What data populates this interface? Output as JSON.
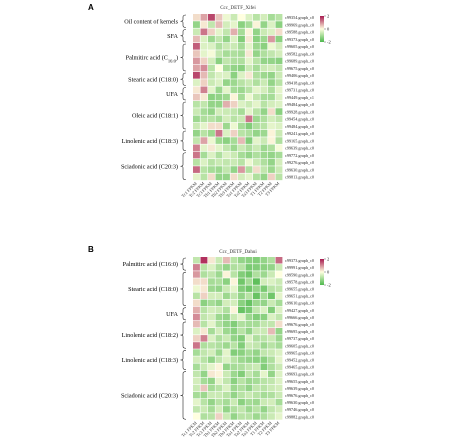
{
  "palette": {
    "low": "#4db84d",
    "mid": "#ffffe0",
    "high": "#a8194f"
  },
  "chart_data": [
    {
      "type": "heatmap",
      "panel_letter": "A",
      "title": "Ccc_DETF_Xifei",
      "columns": [
        "Tc1 FPKM",
        "Tc2 FPKM",
        "Tc3 FPKM",
        "Tb1 FPKM",
        "Tb2 FPKM",
        "Tb3 FPKM",
        "Ta1 FPKM",
        "Ta2 FPKM",
        "Ta3 FPKM",
        "T1 FPKM",
        "T2 FPKM",
        "T3 FPKM"
      ],
      "rows": [
        "c99354.graph_c0",
        "c99969.graph_c0",
        "c99588.graph_c0",
        "c99373.graph_c0",
        "c99605.graph_c0",
        "c99582.graph_c0",
        "c99689.graph_c0",
        "c99675.graph_c0",
        "c99406.graph_c0",
        "c99418.graph_c0",
        "c99731.graph_c0",
        "c99449.graph_c1",
        "c99484.graph_c0",
        "c99928.graph_c0",
        "c99454.graph_c0",
        "c99484.graph_c0",
        "c99241.graph_c0",
        "c99165.graph_c0",
        "c99639.graph_c0",
        "c99772.graph_c0",
        "c99276.graph_c0",
        "c99630.graph_c0",
        "c99813.graph_c0"
      ],
      "values": [
        [
          0.3,
          0.8,
          1.6,
          0.5,
          -0.2,
          -0.6,
          0.0,
          -0.4,
          -0.8,
          -0.5,
          -1.0,
          -0.8
        ],
        [
          -1.2,
          0.2,
          -0.7,
          0.6,
          -0.5,
          -0.3,
          -1.3,
          -1.0,
          0.1,
          -1.2,
          -0.4,
          -1.3
        ],
        [
          -0.6,
          1.2,
          0.4,
          -0.3,
          -0.7,
          0.7,
          -1.0,
          0.1,
          -1.2,
          -0.6,
          -0.4,
          0.3
        ],
        [
          0.6,
          -0.4,
          -1.1,
          -0.7,
          -1.2,
          -0.4,
          -1.4,
          0.2,
          -1.3,
          -1.1,
          0.9,
          -1.3
        ],
        [
          1.4,
          -0.4,
          -0.4,
          -0.9,
          -0.6,
          -0.6,
          -1.0,
          -0.3,
          -1.1,
          -1.3,
          -0.2,
          -0.5
        ],
        [
          0.5,
          -0.3,
          -0.1,
          -0.7,
          -1.0,
          -0.9,
          -1.0,
          0.2,
          -1.2,
          -0.9,
          -0.7,
          -0.5
        ],
        [
          0.9,
          0.4,
          -0.5,
          -1.3,
          -0.7,
          -0.9,
          -0.9,
          -0.3,
          -0.8,
          -1.2,
          -1.2,
          -1.3
        ],
        [
          0.8,
          1.0,
          -0.8,
          0.0,
          -1.0,
          -1.2,
          -1.3,
          -0.6,
          -1.0,
          -0.6,
          -0.5,
          -0.7
        ],
        [
          1.6,
          0.6,
          -0.7,
          -0.4,
          -0.4,
          -1.3,
          -0.4,
          0.2,
          -0.9,
          -1.1,
          -1.2,
          -0.6
        ],
        [
          -0.4,
          0.4,
          -0.6,
          -0.4,
          -1.2,
          -1.1,
          -0.8,
          -0.6,
          -0.9,
          -0.6,
          -1.2,
          -0.8
        ],
        [
          0.2,
          1.1,
          -0.3,
          -1.1,
          -0.3,
          -1.0,
          -1.1,
          -0.8,
          -0.3,
          -0.5,
          -0.9,
          -0.3
        ],
        [
          0.5,
          0.2,
          -1.3,
          -1.2,
          -1.1,
          0.1,
          -1.0,
          -0.2,
          -0.7,
          -1.0,
          -1.0,
          -0.4
        ],
        [
          -0.8,
          -0.7,
          -1.2,
          -1.2,
          0.7,
          0.4,
          -0.4,
          -0.6,
          -0.3,
          -0.8,
          -0.5,
          -0.4
        ],
        [
          -0.6,
          -1.0,
          -1.2,
          -0.5,
          -0.6,
          -0.7,
          -1.0,
          -0.3,
          -0.8,
          -1.2,
          0.3,
          -1.3
        ],
        [
          -1.1,
          -0.9,
          -0.8,
          -1.0,
          -0.5,
          -0.8,
          -0.6,
          1.2,
          -1.1,
          -0.9,
          -0.5,
          -0.7
        ],
        [
          -0.6,
          -0.3,
          0.3,
          0.3,
          -1.1,
          -0.2,
          -1.0,
          -1.4,
          -0.9,
          -0.8,
          -0.3,
          -0.4
        ],
        [
          -1.2,
          -0.8,
          -1.1,
          1.2,
          -0.4,
          0.4,
          -0.8,
          -0.9,
          -1.2,
          -1.1,
          0.1,
          -0.6
        ],
        [
          -0.7,
          0.8,
          -0.2,
          -1.1,
          -1.3,
          -1.0,
          0.6,
          -1.4,
          -0.3,
          -0.6,
          0.1,
          -0.9
        ],
        [
          1.1,
          -0.3,
          0.2,
          -0.3,
          -0.7,
          -1.1,
          -0.6,
          -0.9,
          -0.6,
          -1.1,
          -0.9,
          -0.1
        ],
        [
          1.2,
          -1.0,
          -0.4,
          -0.9,
          -0.4,
          -0.6,
          -1.0,
          -1.2,
          -0.9,
          -1.1,
          -1.2,
          -1.0
        ],
        [
          -0.8,
          -0.4,
          -0.8,
          -0.6,
          -0.7,
          -0.6,
          -0.8,
          -0.2,
          -0.6,
          -0.9,
          -1.2,
          -0.5
        ],
        [
          1.3,
          -0.8,
          -1.0,
          -1.1,
          -0.7,
          -1.2,
          0.9,
          -0.9,
          0.3,
          -0.7,
          -1.1,
          -0.6
        ],
        [
          -0.3,
          -0.8,
          0.3,
          -1.2,
          -1.2,
          0.3,
          -0.5,
          -0.3,
          -0.9,
          -1.2,
          0.4,
          -0.8
        ]
      ],
      "colorscale_range": [
        -2,
        2
      ],
      "legend_ticks": [
        "2",
        "0",
        "-2"
      ],
      "groups": [
        {
          "label": "Oil content of kernels",
          "rows": [
            0,
            2
          ]
        },
        {
          "label": "SFA",
          "rows": [
            2,
            4
          ]
        },
        {
          "label": "Palmitirc acid (C16:0)",
          "label_main": "Palmitirc acid (C",
          "label_sub": "16:0",
          "label_end": ")",
          "rows": [
            4,
            8
          ]
        },
        {
          "label": "Stearic acid (C18:0)",
          "rows": [
            8,
            10
          ]
        },
        {
          "label": "UFA",
          "rows": [
            10,
            12
          ]
        },
        {
          "label": "Oleic acid (C18:1)",
          "rows": [
            12,
            16
          ]
        },
        {
          "label": "Linolenic acid (C18:3)",
          "rows": [
            16,
            19
          ]
        },
        {
          "label": "Sciadonic acid (C20:3)",
          "rows": [
            19,
            23
          ]
        }
      ]
    },
    {
      "type": "heatmap",
      "panel_letter": "B",
      "title": "Ccc_DETF_Dahui",
      "columns": [
        "Tc1 FPKM",
        "Tc2 FPKM",
        "Tc3 FPKM",
        "Tb1 FPKM",
        "Tb2 FPKM",
        "Tb3 FPKM",
        "Ta1 FPKM",
        "Ta2 FPKM",
        "Ta3 FPKM",
        "T1 FPKM",
        "T2 FPKM",
        "T3 FPKM"
      ],
      "rows": [
        "c99373.graph_c0",
        "c99991.graph_c0",
        "c99590.graph_c0",
        "c99578.graph_c0",
        "c99655.graph_c0",
        "c99651.graph_c0",
        "c99610.graph_c0",
        "c99427.graph_c0",
        "c99666.graph_c0",
        "c99676.graph_c0",
        "c99695.graph_c0",
        "c99737.graph_c0",
        "c99605.graph_c0",
        "c99965.graph_c0",
        "c99452.graph_c0",
        "c99465.graph_c0",
        "c99693.graph_c0",
        "c99655.graph_c0",
        "c99639.graph_c0",
        "c99676.graph_c0",
        "c99630.graph_c0",
        "c99746.graph_c0",
        "c99882.graph_c0"
      ],
      "values": [
        [
          -0.7,
          1.8,
          0.2,
          -0.6,
          0.6,
          -0.8,
          -1.2,
          -1.3,
          -1.4,
          -1.2,
          -0.9,
          1.3
        ],
        [
          1.1,
          -0.8,
          -0.4,
          -0.9,
          -1.2,
          -0.9,
          -0.8,
          -1.5,
          -1.4,
          -1.3,
          -1.2,
          -0.6
        ],
        [
          0.9,
          -0.9,
          -0.7,
          -1.1,
          0.1,
          -0.8,
          -1.4,
          -1.6,
          -0.9,
          -1.1,
          -0.6,
          0.0
        ],
        [
          0.3,
          0.3,
          -1.0,
          -0.9,
          -1.3,
          0.1,
          -1.6,
          -1.0,
          -1.8,
          -0.5,
          -0.4,
          -0.6
        ],
        [
          -0.2,
          0.2,
          -1.1,
          -1.2,
          -0.6,
          -0.3,
          -1.4,
          -1.6,
          -1.2,
          -1.5,
          -0.8,
          -0.7
        ],
        [
          -0.8,
          0.4,
          -0.5,
          -0.5,
          -1.1,
          -0.7,
          -1.2,
          -0.8,
          -1.7,
          -1.0,
          -1.6,
          -0.3
        ],
        [
          0.3,
          -1.3,
          -1.0,
          -1.2,
          -0.5,
          -0.5,
          -1.3,
          -1.7,
          -1.1,
          -1.2,
          -0.6,
          -1.0
        ],
        [
          0.7,
          -0.8,
          -0.5,
          -0.6,
          -0.9,
          0.1,
          -1.7,
          -1.5,
          -0.7,
          -0.4,
          -1.4,
          -0.4
        ],
        [
          1.0,
          -0.7,
          -0.5,
          -1.1,
          -1.2,
          -0.6,
          -0.3,
          -1.1,
          -1.4,
          -1.3,
          -0.4,
          -0.7
        ],
        [
          0.6,
          -0.8,
          -0.3,
          -0.9,
          -1.2,
          -1.4,
          -0.9,
          -1.0,
          -1.0,
          -0.7,
          -0.7,
          0.3
        ],
        [
          -0.4,
          0.2,
          -1.0,
          -0.5,
          -1.1,
          -1.3,
          -0.8,
          -1.2,
          -0.6,
          -0.6,
          0.6,
          -1.2
        ],
        [
          0.4,
          1.1,
          -0.4,
          -0.9,
          -0.6,
          -1.2,
          -1.4,
          -0.4,
          -0.9,
          -0.8,
          -0.6,
          -1.1
        ],
        [
          1.2,
          -0.9,
          -0.8,
          -0.9,
          -1.1,
          -0.8,
          -1.4,
          -0.6,
          -0.7,
          -1.1,
          -0.8,
          -1.0
        ],
        [
          -1.0,
          -0.7,
          -0.5,
          -1.1,
          -0.3,
          -1.4,
          -1.3,
          -1.0,
          -1.2,
          -0.7,
          -0.6,
          -0.4
        ],
        [
          -0.5,
          -0.8,
          -1.2,
          -0.7,
          -0.4,
          -0.8,
          -1.1,
          -1.2,
          -1.3,
          -1.3,
          -0.9,
          -0.3
        ],
        [
          -1.0,
          -0.6,
          -0.3,
          0.1,
          -1.2,
          -1.0,
          -0.9,
          -0.7,
          -0.6,
          -1.4,
          -0.9,
          -0.6
        ],
        [
          -0.7,
          -1.2,
          0.2,
          0.1,
          -0.6,
          -1.1,
          -1.4,
          -0.7,
          -1.0,
          -0.3,
          -1.2,
          -0.4
        ],
        [
          -0.5,
          -1.0,
          -1.2,
          -0.3,
          -0.7,
          -1.3,
          -0.8,
          -1.1,
          -1.0,
          -0.8,
          -0.7,
          -0.4
        ],
        [
          -0.6,
          0.5,
          -1.0,
          -0.8,
          -0.4,
          -1.1,
          -0.9,
          -1.2,
          -0.7,
          -0.8,
          -0.6,
          -0.5
        ],
        [
          -1.0,
          -1.1,
          -0.6,
          -0.6,
          -0.8,
          -1.2,
          -0.8,
          -0.6,
          -0.8,
          -1.0,
          -0.9,
          -0.6
        ],
        [
          -0.3,
          -0.8,
          -1.2,
          -0.8,
          -1.0,
          -0.6,
          -1.3,
          -1.0,
          -1.1,
          -0.6,
          -0.5,
          -1.0
        ],
        [
          -0.7,
          -0.6,
          -1.0,
          -0.5,
          -1.2,
          -0.9,
          -0.7,
          -1.1,
          -0.8,
          -1.2,
          -0.7,
          -0.5
        ],
        [
          0.0,
          -0.9,
          -0.8,
          0.4,
          -0.6,
          -1.2,
          -0.8,
          -0.8,
          -1.1,
          -0.9,
          -0.6,
          -0.3
        ]
      ],
      "colorscale_range": [
        -2,
        2
      ],
      "legend_ticks": [
        "2",
        "0",
        "-2"
      ],
      "groups": [
        {
          "label": "Palmitirc acid (C16:0)",
          "rows": [
            0,
            2
          ]
        },
        {
          "label": "Stearic acid (C18:0)",
          "rows": [
            2,
            7
          ]
        },
        {
          "label": "UFA",
          "rows": [
            7,
            9
          ]
        },
        {
          "label": "Linolenic acid (C18:2)",
          "rows": [
            9,
            13
          ]
        },
        {
          "label": "Linolenic acid (C18:3)",
          "rows": [
            13,
            16
          ]
        },
        {
          "label": "Sciadonic acid (C20:3)",
          "rows": [
            16,
            23
          ]
        }
      ]
    }
  ]
}
